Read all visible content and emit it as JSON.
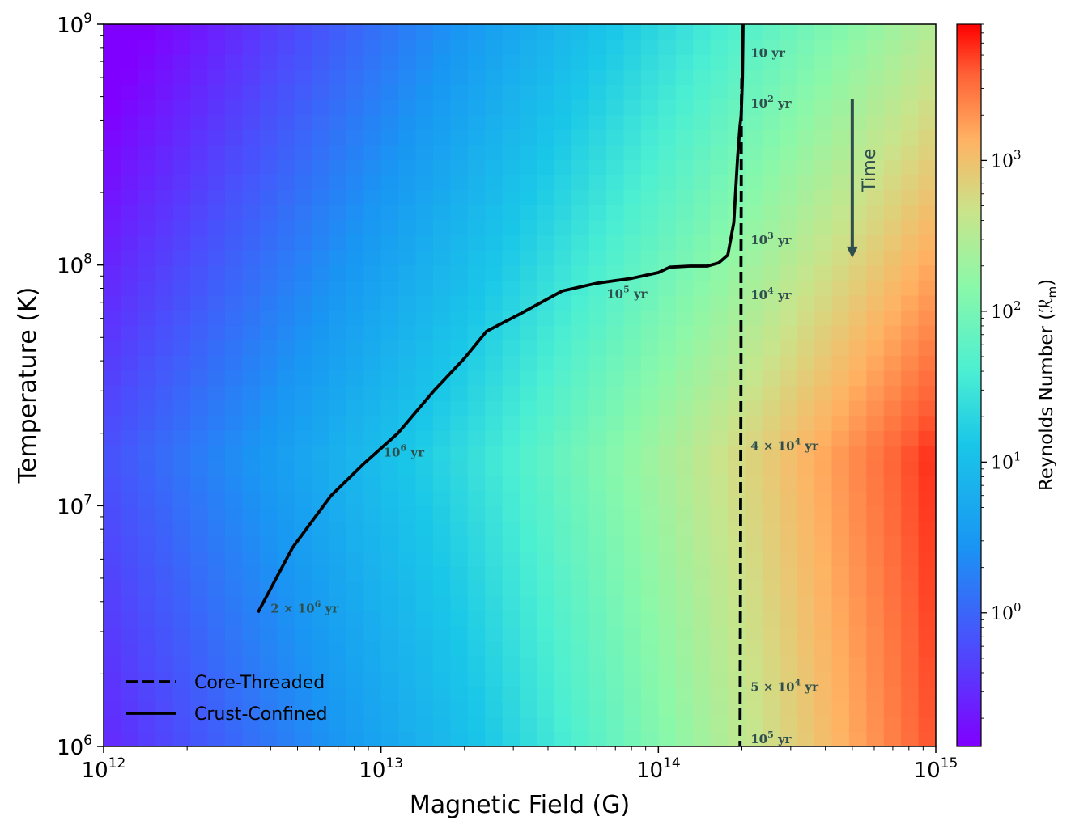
{
  "chart_data": [
    {
      "type": "heatmap",
      "xlabel": "Magnetic Field (G)",
      "ylabel": "Temperature (K)",
      "xscale": "log",
      "yscale": "log",
      "xlim": [
        1000000000000.0,
        1000000000000000.0
      ],
      "ylim": [
        1000000.0,
        1000000000.0
      ],
      "x_ticks": [
        {
          "value": 1000000000000.0,
          "base": "10",
          "exp": "12"
        },
        {
          "value": 10000000000000.0,
          "base": "10",
          "exp": "13"
        },
        {
          "value": 100000000000000.0,
          "base": "10",
          "exp": "14"
        },
        {
          "value": 1000000000000000.0,
          "base": "10",
          "exp": "15"
        }
      ],
      "y_ticks": [
        {
          "value": 1000000.0,
          "base": "10",
          "exp": "6"
        },
        {
          "value": 10000000.0,
          "base": "10",
          "exp": "7"
        },
        {
          "value": 100000000.0,
          "base": "10",
          "exp": "8"
        },
        {
          "value": 1000000000.0,
          "base": "10",
          "exp": "9"
        }
      ],
      "colormap": "rainbow",
      "colorbar": {
        "label": "Reynolds Number (ℛ",
        "label_sub": "m",
        "label_end": ")",
        "scale": "log",
        "range": [
          0.13,
          8000
        ],
        "ticks": [
          {
            "value": 1,
            "base": "10",
            "exp": "0"
          },
          {
            "value": 10,
            "base": "10",
            "exp": "1"
          },
          {
            "value": 100,
            "base": "10",
            "exp": "2"
          },
          {
            "value": 1000,
            "base": "10",
            "exp": "3"
          }
        ]
      },
      "grid": false,
      "legend_position": "lower-left",
      "series": [
        {
          "name": "Core-Threaded",
          "style": "dashed",
          "color": "#000000",
          "x": [
            200000000000000.0,
            199000000000000.0,
            199000000000000.0,
            198500000000000.0,
            198500000000000.0,
            198000000000000.0,
            197500000000000.0,
            197000000000000.0
          ],
          "y": [
            600000000.0,
            420000000.0,
            200000000.0,
            100000000.0,
            40000000.0,
            12000000.0,
            3000000.0,
            1000000.0
          ]
        },
        {
          "name": "Crust-Confined",
          "style": "solid",
          "color": "#000000",
          "x": [
            202000000000000.0,
            201000000000000.0,
            199000000000000.0,
            197000000000000.0,
            193000000000000.0,
            187000000000000.0,
            178000000000000.0,
            165000000000000.0,
            150000000000000.0,
            130000000000000.0,
            110000000000000.0,
            100000000000000.0,
            80000000000000.0,
            60000000000000.0,
            45000000000000.0,
            32000000000000.0,
            24000000000000.0,
            20000000000000.0,
            15500000000000.0,
            11500000000000.0,
            8700000000000.0,
            6600000000000.0,
            4800000000000.0,
            3600000000000.0
          ],
          "y": [
            1000000000.0,
            600000000.0,
            420000000.0,
            380000000.0,
            280000000.0,
            150000000.0,
            110000000.0,
            102000000.0,
            99000000.0,
            99000000.0,
            98000000.0,
            93000000.0,
            88000000.0,
            84000000.0,
            78000000.0,
            63000000.0,
            53000000.0,
            41000000.0,
            30000000.0,
            20000000.0,
            15000000.0,
            11000000.0,
            6700000.0,
            3600000.0
          ]
        }
      ],
      "annotations": [
        {
          "text": "10 yr",
          "x": 215000000000000.0,
          "y": 730000000.0
        },
        {
          "text": "10",
          "sup": "2",
          "after": " yr",
          "x": 215000000000000.0,
          "y": 450000000.0
        },
        {
          "text": "10",
          "sup": "3",
          "after": " yr",
          "x": 215000000000000.0,
          "y": 122000000.0
        },
        {
          "text": "10",
          "sup": "4",
          "after": " yr",
          "x": 215000000000000.0,
          "y": 72000000.0
        },
        {
          "text": "10",
          "sup": "5",
          "after": " yr",
          "x": 65000000000000.0,
          "y": 73000000.0
        },
        {
          "text": "10",
          "sup": "6",
          "after": " yr",
          "x": 10200000000000.0,
          "y": 16000000.0
        },
        {
          "text": "4 × 10",
          "sup": "4",
          "after": " yr",
          "x": 215000000000000.0,
          "y": 17000000.0
        },
        {
          "text": "2 × 10",
          "sup": "6",
          "after": " yr",
          "x": 4000000000000.0,
          "y": 3600000.0
        },
        {
          "text": "5 × 10",
          "sup": "4",
          "after": " yr",
          "x": 215000000000000.0,
          "y": 1700000.0
        },
        {
          "text": "10",
          "sup": "5",
          "after": " yr",
          "x": 215000000000000.0,
          "y": 1030000.0
        }
      ],
      "time_arrow": {
        "label": "Time",
        "x": 500000000000000.0,
        "y_from": 490000000.0,
        "y_to": 107000000.0,
        "color": "#2f4f4f"
      }
    }
  ]
}
